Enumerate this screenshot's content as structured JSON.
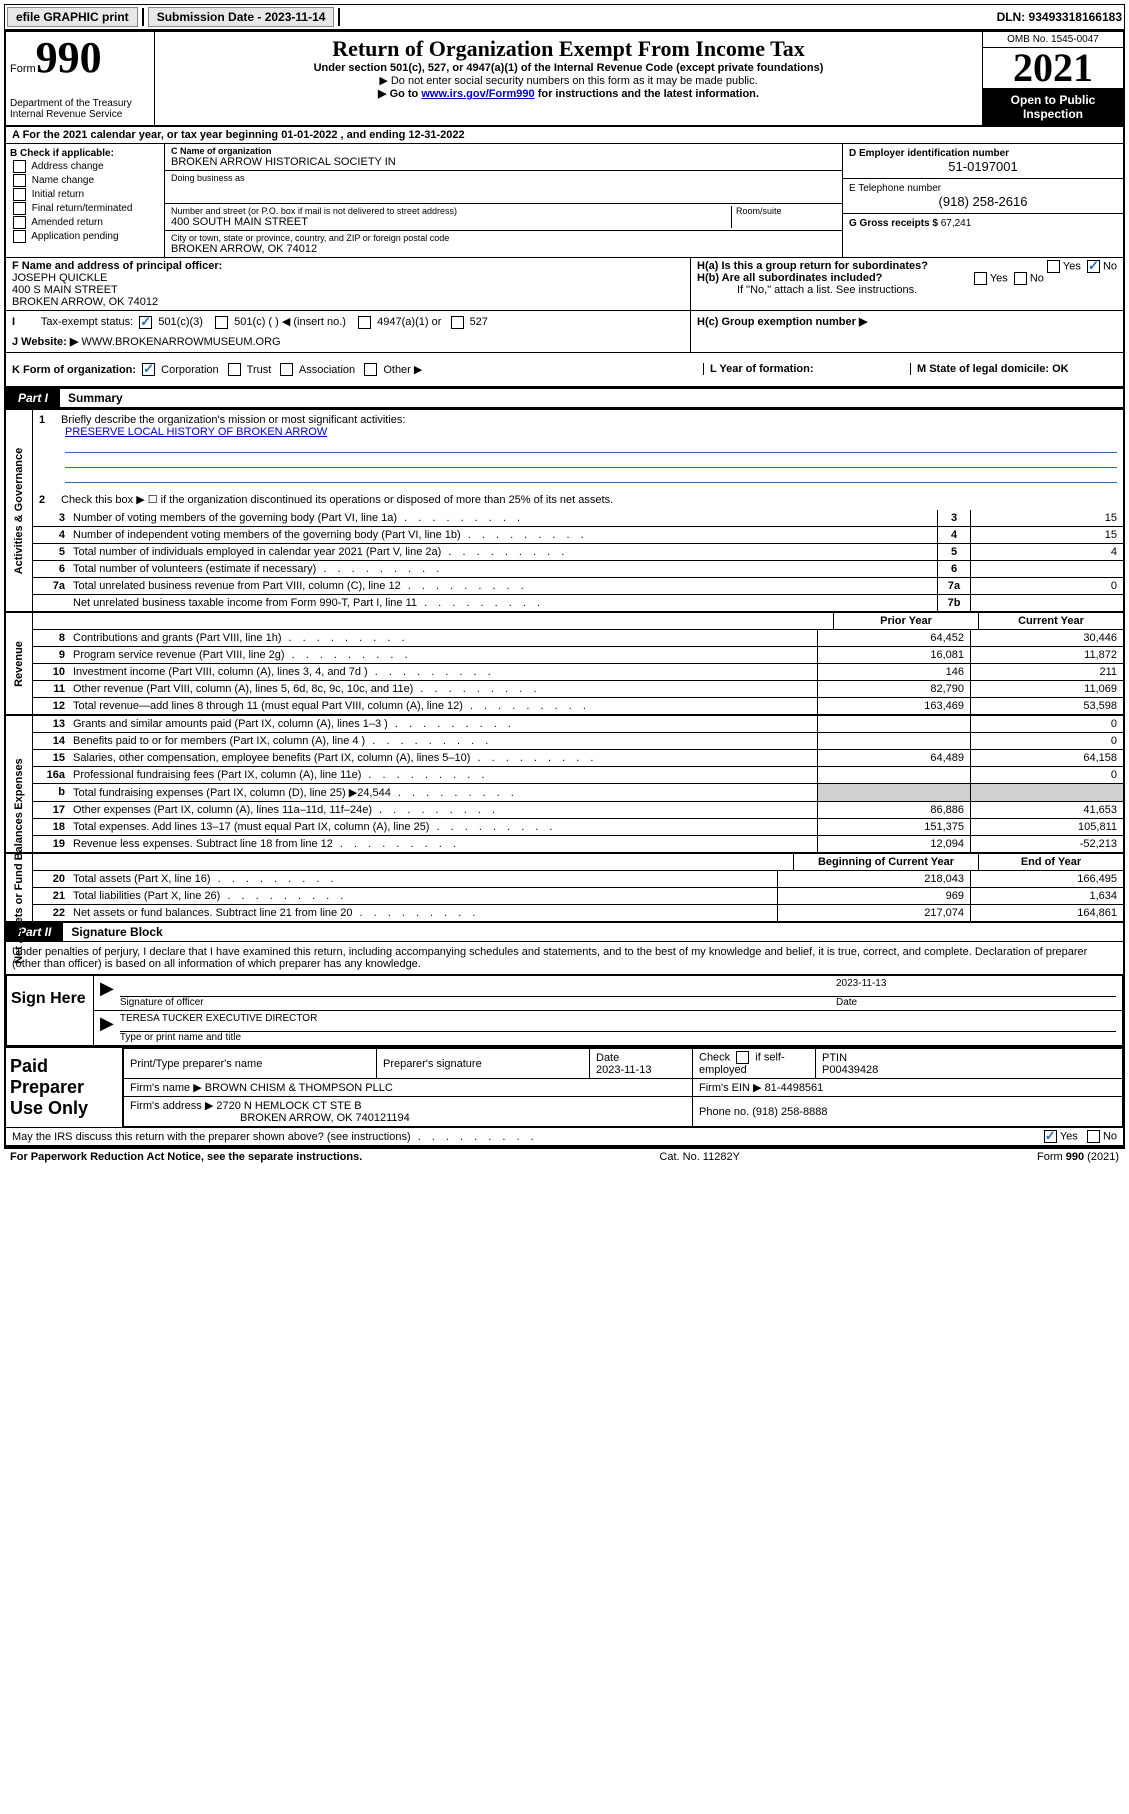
{
  "topbar": {
    "efile": "efile GRAPHIC print",
    "submission_label": "Submission Date - 2023-11-14",
    "dln_label": "DLN: 93493318166183"
  },
  "header": {
    "form_word": "Form",
    "form_number": "990",
    "dept": "Department of the Treasury",
    "irs": "Internal Revenue Service",
    "title": "Return of Organization Exempt From Income Tax",
    "sub": "Under section 501(c), 527, or 4947(a)(1) of the Internal Revenue Code (except private foundations)",
    "note1": "▶ Do not enter social security numbers on this form as it may be made public.",
    "note2_pre": "▶ Go to ",
    "note2_link": "www.irs.gov/Form990",
    "note2_post": " for instructions and the latest information.",
    "omb": "OMB No. 1545-0047",
    "year": "2021",
    "open": "Open to Public Inspection"
  },
  "row_a": "A For the 2021 calendar year, or tax year beginning 01-01-2022   , and ending 12-31-2022",
  "b": {
    "label": "B Check if applicable:",
    "items": [
      "Address change",
      "Name change",
      "Initial return",
      "Final return/terminated",
      "Amended return",
      "Application pending"
    ]
  },
  "c": {
    "name_label": "C Name of organization",
    "name": "BROKEN ARROW HISTORICAL SOCIETY IN",
    "dba_label": "Doing business as",
    "street_label": "Number and street (or P.O. box if mail is not delivered to street address)",
    "room_label": "Room/suite",
    "street": "400 SOUTH MAIN STREET",
    "city_label": "City or town, state or province, country, and ZIP or foreign postal code",
    "city": "BROKEN ARROW, OK  74012"
  },
  "d": {
    "ein_label": "D Employer identification number",
    "ein": "51-0197001",
    "phone_label": "E Telephone number",
    "phone": "(918) 258-2616",
    "gross_label": "G Gross receipts $",
    "gross": "67,241"
  },
  "f": {
    "label": "F Name and address of principal officer:",
    "name": "JOSEPH QUICKLE",
    "street": "400 S MAIN STREET",
    "city": "BROKEN ARROW, OK  74012"
  },
  "h": {
    "a": "H(a)  Is this a group return for subordinates?",
    "b": "H(b)  Are all subordinates included?",
    "note": "If \"No,\" attach a list. See instructions.",
    "c": "H(c)  Group exemption number ▶",
    "yes": "Yes",
    "no": "No"
  },
  "i": {
    "label": "Tax-exempt status:",
    "opts": [
      "501(c)(3)",
      "501(c) (  ) ◀ (insert no.)",
      "4947(a)(1) or",
      "527"
    ]
  },
  "j": {
    "label": "J Website: ▶",
    "val": "WWW.BROKENARROWMUSEUM.ORG"
  },
  "k": {
    "label": "K Form of organization:",
    "opts": [
      "Corporation",
      "Trust",
      "Association",
      "Other ▶"
    ],
    "l_label": "L Year of formation:",
    "m_label": "M State of legal domicile: OK"
  },
  "part1": {
    "tag": "Part I",
    "title": "Summary"
  },
  "mission": {
    "num": "1",
    "label": "Briefly describe the organization's mission or most significant activities:",
    "text": "PRESERVE LOCAL HISTORY OF BROKEN ARROW"
  },
  "lines": {
    "l2": "Check this box ▶ ☐  if the organization discontinued its operations or disposed of more than 25% of its net assets.",
    "l3": {
      "t": "Number of voting members of the governing body (Part VI, line 1a)",
      "b": "3",
      "v": "15"
    },
    "l4": {
      "t": "Number of independent voting members of the governing body (Part VI, line 1b)",
      "b": "4",
      "v": "15"
    },
    "l5": {
      "t": "Total number of individuals employed in calendar year 2021 (Part V, line 2a)",
      "b": "5",
      "v": "4"
    },
    "l6": {
      "t": "Total number of volunteers (estimate if necessary)",
      "b": "6",
      "v": ""
    },
    "l7a": {
      "t": "Total unrelated business revenue from Part VIII, column (C), line 12",
      "b": "7a",
      "v": "0"
    },
    "l7b": {
      "t": "Net unrelated business taxable income from Form 990-T, Part I, line 11",
      "b": "7b",
      "v": ""
    }
  },
  "yearheaders": {
    "prior": "Prior Year",
    "current": "Current Year"
  },
  "revenue": [
    {
      "n": "8",
      "t": "Contributions and grants (Part VIII, line 1h)",
      "p": "64,452",
      "c": "30,446"
    },
    {
      "n": "9",
      "t": "Program service revenue (Part VIII, line 2g)",
      "p": "16,081",
      "c": "11,872"
    },
    {
      "n": "10",
      "t": "Investment income (Part VIII, column (A), lines 3, 4, and 7d )",
      "p": "146",
      "c": "211"
    },
    {
      "n": "11",
      "t": "Other revenue (Part VIII, column (A), lines 5, 6d, 8c, 9c, 10c, and 11e)",
      "p": "82,790",
      "c": "11,069"
    },
    {
      "n": "12",
      "t": "Total revenue—add lines 8 through 11 (must equal Part VIII, column (A), line 12)",
      "p": "163,469",
      "c": "53,598"
    }
  ],
  "expenses": [
    {
      "n": "13",
      "t": "Grants and similar amounts paid (Part IX, column (A), lines 1–3 )",
      "p": "",
      "c": "0"
    },
    {
      "n": "14",
      "t": "Benefits paid to or for members (Part IX, column (A), line 4 )",
      "p": "",
      "c": "0"
    },
    {
      "n": "15",
      "t": "Salaries, other compensation, employee benefits (Part IX, column (A), lines 5–10)",
      "p": "64,489",
      "c": "64,158"
    },
    {
      "n": "16a",
      "t": "Professional fundraising fees (Part IX, column (A), line 11e)",
      "p": "",
      "c": "0"
    },
    {
      "n": "b",
      "t": "Total fundraising expenses (Part IX, column (D), line 25) ▶24,544",
      "p": "SHADE",
      "c": "SHADE"
    },
    {
      "n": "17",
      "t": "Other expenses (Part IX, column (A), lines 11a–11d, 11f–24e)",
      "p": "86,886",
      "c": "41,653"
    },
    {
      "n": "18",
      "t": "Total expenses. Add lines 13–17 (must equal Part IX, column (A), line 25)",
      "p": "151,375",
      "c": "105,811"
    },
    {
      "n": "19",
      "t": "Revenue less expenses. Subtract line 18 from line 12",
      "p": "12,094",
      "c": "-52,213"
    }
  ],
  "netheaders": {
    "beg": "Beginning of Current Year",
    "end": "End of Year"
  },
  "netassets": [
    {
      "n": "20",
      "t": "Total assets (Part X, line 16)",
      "p": "218,043",
      "c": "166,495"
    },
    {
      "n": "21",
      "t": "Total liabilities (Part X, line 26)",
      "p": "969",
      "c": "1,634"
    },
    {
      "n": "22",
      "t": "Net assets or fund balances. Subtract line 21 from line 20",
      "p": "217,074",
      "c": "164,861"
    }
  ],
  "part2": {
    "tag": "Part II",
    "title": "Signature Block"
  },
  "penalties": "Under penalties of perjury, I declare that I have examined this return, including accompanying schedules and statements, and to the best of my knowledge and belief, it is true, correct, and complete. Declaration of preparer (other than officer) is based on all information of which preparer has any knowledge.",
  "sign": {
    "here": "Sign Here",
    "sig_officer": "Signature of officer",
    "date_label": "Date",
    "date": "2023-11-13",
    "name": "TERESA TUCKER  EXECUTIVE DIRECTOR",
    "name_label": "Type or print name and title"
  },
  "prep": {
    "label": "Paid Preparer Use Only",
    "h1": "Print/Type preparer's name",
    "h2": "Preparer's signature",
    "h3": "Date",
    "date": "2023-11-13",
    "h4_a": "Check",
    "h4_b": "if self-employed",
    "h5": "PTIN",
    "ptin": "P00439428",
    "firm_name_l": "Firm's name    ▶",
    "firm_name": "BROWN CHISM & THOMPSON PLLC",
    "firm_ein_l": "Firm's EIN ▶",
    "firm_ein": "81-4498561",
    "firm_addr_l": "Firm's address ▶",
    "firm_addr1": "2720 N HEMLOCK CT STE B",
    "firm_addr2": "BROKEN ARROW, OK  740121194",
    "phone_l": "Phone no.",
    "phone": "(918) 258-8888"
  },
  "footer": {
    "discuss": "May the IRS discuss this return with the preparer shown above? (see instructions)",
    "paperwork": "For Paperwork Reduction Act Notice, see the separate instructions.",
    "cat": "Cat. No. 11282Y",
    "form": "Form 990 (2021)",
    "yes": "Yes",
    "no": "No"
  },
  "vlabels": {
    "gov": "Activities & Governance",
    "rev": "Revenue",
    "exp": "Expenses",
    "net": "Net Assets or Fund Balances"
  }
}
